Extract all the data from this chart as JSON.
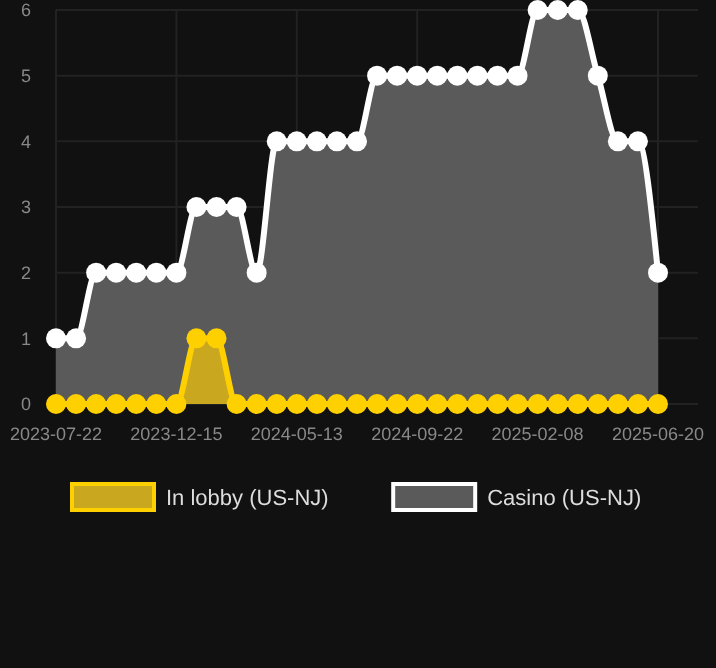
{
  "chart_data": {
    "type": "area",
    "categories": [
      "2023-07-22",
      null,
      null,
      null,
      null,
      null,
      "2023-12-15",
      null,
      null,
      null,
      null,
      null,
      "2024-05-13",
      null,
      null,
      null,
      null,
      null,
      "2024-09-22",
      null,
      null,
      null,
      null,
      null,
      "2025-02-08",
      null,
      null,
      null,
      null,
      null,
      "2025-06-20"
    ],
    "series": [
      {
        "name": "In lobby (US-NJ)",
        "color": "#ffd000",
        "values": [
          0,
          0,
          0,
          0,
          0,
          0,
          0,
          1,
          1,
          0,
          0,
          0,
          0,
          0,
          0,
          0,
          0,
          0,
          0,
          0,
          0,
          0,
          0,
          0,
          0,
          0,
          0,
          0,
          0,
          0,
          0
        ]
      },
      {
        "name": "Casino (US-NJ)",
        "color": "#ffffff",
        "values": [
          1,
          1,
          2,
          2,
          2,
          2,
          2,
          3,
          3,
          3,
          2,
          4,
          4,
          4,
          4,
          4,
          5,
          5,
          5,
          5,
          5,
          5,
          5,
          5,
          6,
          6,
          6,
          5,
          4,
          4,
          2
        ]
      }
    ],
    "ylim": [
      0,
      6
    ],
    "yticks": [
      0,
      1,
      2,
      3,
      4,
      5,
      6
    ],
    "grid": true,
    "legend": "bottom",
    "marker": "circle"
  }
}
